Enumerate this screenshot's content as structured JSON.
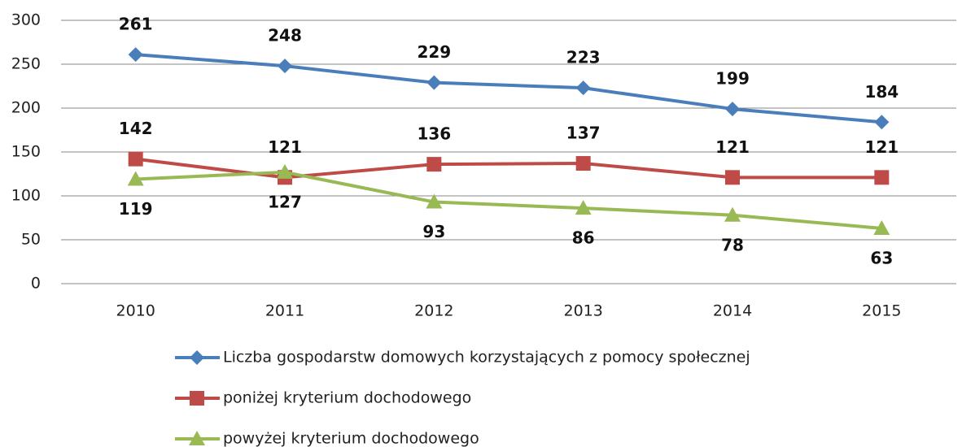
{
  "chart_data": {
    "type": "line",
    "categories": [
      "2010",
      "2011",
      "2012",
      "2013",
      "2014",
      "2015"
    ],
    "series": [
      {
        "name": "Liczba gospodarstw domowych korzystających z pomocy społecznej",
        "color": "#4a7ebb",
        "marker": "diamond",
        "label_position": "above",
        "values": [
          261,
          248,
          229,
          223,
          199,
          184
        ]
      },
      {
        "name": "poniżej kryterium dochodowego",
        "color": "#be4b48",
        "marker": "square",
        "label_position": "above",
        "values": [
          142,
          121,
          136,
          137,
          121,
          121
        ]
      },
      {
        "name": "powyżej kryterium dochodowego",
        "color": "#98b954",
        "marker": "triangle",
        "label_position": "below",
        "values": [
          119,
          127,
          93,
          86,
          78,
          63
        ]
      }
    ],
    "ylim": [
      0,
      300
    ],
    "yticks": [
      0,
      50,
      100,
      150,
      200,
      250,
      300
    ],
    "grid": true,
    "legend": "bottom"
  }
}
